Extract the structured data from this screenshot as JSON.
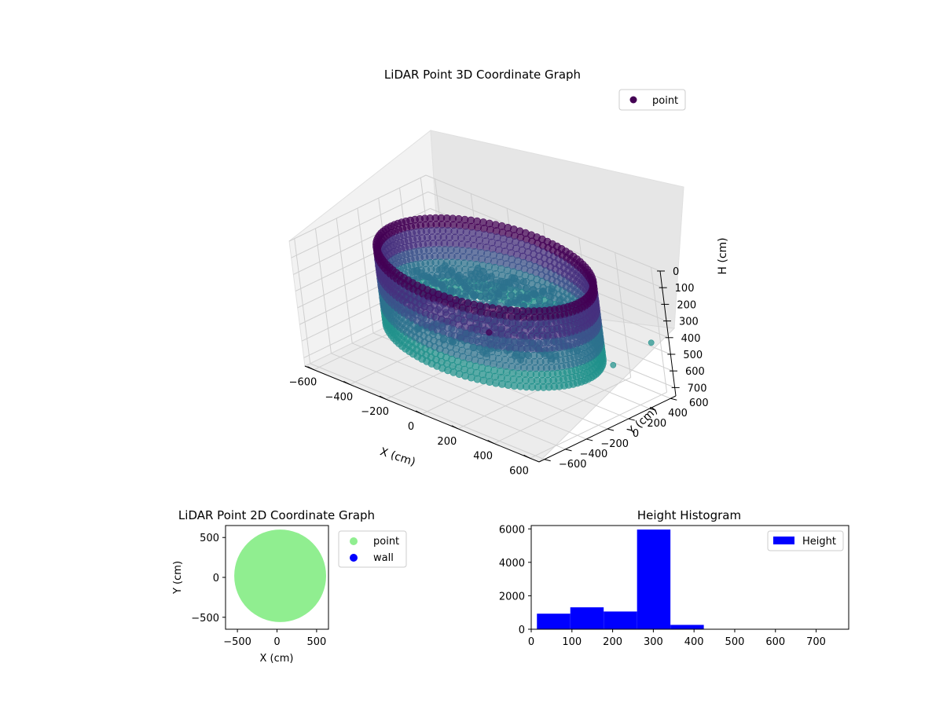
{
  "chart_data": [
    {
      "type": "scatter",
      "title": "LiDAR Point 3D Coordinate Graph",
      "xlabel": "X (cm)",
      "ylabel": "Y (cm)",
      "zlabel": "H (cm)",
      "xlim": [
        -650,
        650
      ],
      "ylim": [
        -650,
        650
      ],
      "zlim": [
        750,
        0
      ],
      "x_ticks": [
        "−600",
        "−400",
        "−200",
        "0",
        "200",
        "400",
        "600"
      ],
      "y_ticks": [
        "−600",
        "−400",
        "−200",
        "0",
        "200",
        "400",
        "600"
      ],
      "z_ticks": [
        "0",
        "100",
        "200",
        "300",
        "400",
        "500",
        "600",
        "700"
      ],
      "legend": [
        "point"
      ],
      "legend_position": "top-right",
      "colormap": "viridis",
      "grid": true,
      "structure": {
        "wall_radius": 520,
        "wall_center": [
          40,
          20
        ],
        "wall_top_h": 40,
        "wall_bottom_h": 500,
        "floor_h": 330,
        "mound_center": [
          -120,
          -180
        ],
        "mound_peak_h": 220,
        "outliers": [
          [
            420,
            -600,
            90
          ],
          [
            410,
            -320,
            250
          ],
          [
            630,
            520,
            400
          ],
          [
            600,
            200,
            450
          ]
        ]
      },
      "series": [
        {
          "name": "point",
          "color": "#440154"
        }
      ]
    },
    {
      "type": "scatter",
      "title": "LiDAR Point 2D Coordinate Graph",
      "xlabel": "X (cm)",
      "ylabel": "Y (cm)",
      "xlim": [
        -650,
        650
      ],
      "ylim": [
        -650,
        650
      ],
      "x_ticks": [
        "−500",
        "0",
        "500"
      ],
      "y_ticks": [
        "−500",
        "0",
        "500"
      ],
      "legend_position": "outside-right",
      "series": [
        {
          "name": "point",
          "color": "#90ee90",
          "center": [
            40,
            20
          ],
          "radius": 580
        },
        {
          "name": "wall",
          "color": "#0000ff",
          "values": []
        }
      ]
    },
    {
      "type": "bar",
      "title": "Height Histogram",
      "xlabel": "",
      "ylabel": "",
      "xlim": [
        0,
        780
      ],
      "ylim": [
        0,
        6200
      ],
      "x_ticks": [
        "0",
        "100",
        "200",
        "300",
        "400",
        "500",
        "600",
        "700"
      ],
      "y_ticks": [
        "0",
        "2000",
        "4000",
        "6000"
      ],
      "legend": [
        "Height"
      ],
      "legend_position": "top-right",
      "color": "#0000ff",
      "bins": [
        {
          "start": 14,
          "end": 96,
          "count": 930
        },
        {
          "start": 96,
          "end": 178,
          "count": 1310
        },
        {
          "start": 178,
          "end": 260,
          "count": 1060
        },
        {
          "start": 260,
          "end": 342,
          "count": 5960
        },
        {
          "start": 342,
          "end": 424,
          "count": 260
        },
        {
          "start": 424,
          "end": 506,
          "count": 8
        },
        {
          "start": 506,
          "end": 588,
          "count": 6
        },
        {
          "start": 588,
          "end": 670,
          "count": 5
        },
        {
          "start": 670,
          "end": 752,
          "count": 4
        }
      ]
    }
  ]
}
